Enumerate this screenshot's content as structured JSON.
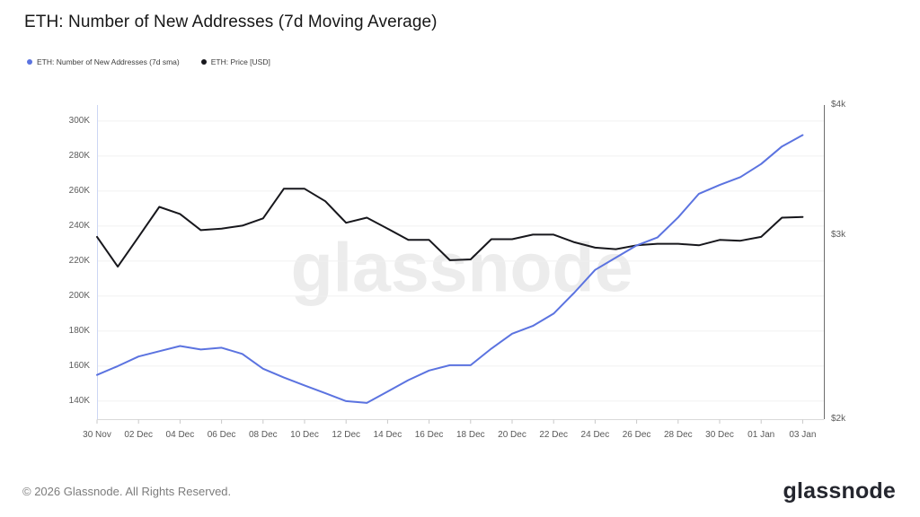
{
  "header": {
    "title": "ETH: Number of New Addresses (7d Moving Average)"
  },
  "legend": {
    "items": [
      {
        "label": "ETH: Number of New Addresses (7d sma)",
        "color": "#5b73e0"
      },
      {
        "label": "ETH: Price [USD]",
        "color": "#17171c"
      }
    ]
  },
  "chart_data": {
    "type": "line",
    "title": "ETH: Number of New Addresses (7d Moving Average)",
    "xlabel": "",
    "ylabel": "",
    "grid": "horizontal",
    "legend_position": "top-left",
    "watermark": "glassnode",
    "x": [
      "30 Nov",
      "01 Dec",
      "02 Dec",
      "03 Dec",
      "04 Dec",
      "05 Dec",
      "06 Dec",
      "07 Dec",
      "08 Dec",
      "09 Dec",
      "10 Dec",
      "11 Dec",
      "12 Dec",
      "13 Dec",
      "14 Dec",
      "15 Dec",
      "16 Dec",
      "17 Dec",
      "18 Dec",
      "19 Dec",
      "20 Dec",
      "21 Dec",
      "22 Dec",
      "23 Dec",
      "24 Dec",
      "25 Dec",
      "26 Dec",
      "27 Dec",
      "28 Dec",
      "29 Dec",
      "30 Dec",
      "31 Dec",
      "01 Jan",
      "02 Jan",
      "03 Jan"
    ],
    "series": [
      {
        "name": "ETH: Number of New Addresses (7d sma)",
        "axis": "left",
        "color": "#5b73e0",
        "values": [
          155000,
          160000,
          165500,
          168500,
          171500,
          169500,
          170500,
          167000,
          158500,
          153500,
          149000,
          144500,
          140000,
          139000,
          145500,
          152000,
          157500,
          160500,
          160500,
          170000,
          178500,
          183000,
          190000,
          202000,
          215000,
          222000,
          229000,
          233500,
          245000,
          258500,
          263500,
          268000,
          275500,
          285500,
          292000
        ]
      },
      {
        "name": "ETH: Price [USD]",
        "axis": "right",
        "color": "#17171c",
        "values": [
          2990,
          2800,
          2990,
          3195,
          3145,
          3035,
          3045,
          3065,
          3115,
          3325,
          3325,
          3235,
          3085,
          3120,
          3045,
          2970,
          2970,
          2840,
          2845,
          2975,
          2975,
          3005,
          3005,
          2955,
          2920,
          2910,
          2935,
          2945,
          2945,
          2935,
          2970,
          2965,
          2990,
          3120,
          3125
        ]
      }
    ],
    "left_axis": {
      "scale": "linear",
      "range": [
        129700,
        309200
      ],
      "tick_values": [
        140000,
        160000,
        180000,
        200000,
        220000,
        240000,
        260000,
        280000,
        300000
      ],
      "tick_labels": [
        "140K",
        "160K",
        "180K",
        "200K",
        "220K",
        "240K",
        "260K",
        "280K",
        "300K"
      ]
    },
    "right_axis": {
      "scale": "log",
      "range": [
        2000,
        4000
      ],
      "tick_values": [
        2000,
        3000,
        4000
      ],
      "tick_labels": [
        "$2k",
        "$3k",
        "$4k"
      ]
    },
    "x_ticks": {
      "indices": [
        0,
        2,
        4,
        6,
        8,
        10,
        12,
        14,
        16,
        18,
        20,
        22,
        24,
        26,
        28,
        30,
        32,
        34
      ],
      "labels": [
        "30 Nov",
        "02 Dec",
        "04 Dec",
        "06 Dec",
        "08 Dec",
        "10 Dec",
        "12 Dec",
        "14 Dec",
        "16 Dec",
        "18 Dec",
        "20 Dec",
        "22 Dec",
        "24 Dec",
        "26 Dec",
        "28 Dec",
        "30 Dec",
        "01 Jan",
        "03 Jan"
      ]
    }
  },
  "watermark": {
    "text": "glassnode"
  },
  "footer": {
    "copyright": "© 2026 Glassnode. All Rights Reserved.",
    "logo_text": "glassnode"
  }
}
